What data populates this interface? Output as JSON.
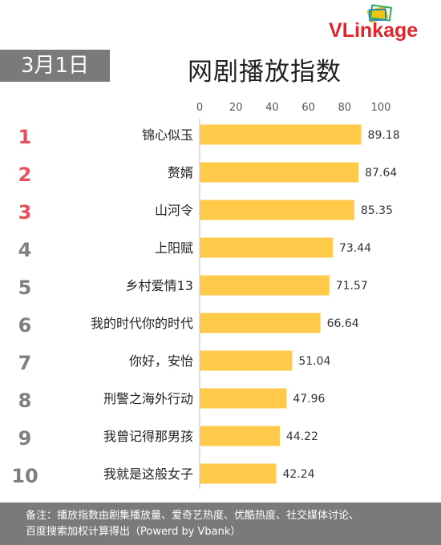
{
  "date_badge": "3月1日",
  "logo": {
    "v": "V",
    "rest": "Linkage"
  },
  "footer": {
    "line1": "备注：播放指数由剧集播放量、爱奇艺热度、优酷热度、社交媒体讨论、",
    "line2": "百度搜索加权计算得出（Powerd by Vbank）"
  },
  "colors": {
    "bar": "#ffc94a",
    "rank_top": "#e8505b",
    "rank_other": "#808080",
    "badge": "#7a7a7a"
  },
  "chart_data": {
    "type": "bar",
    "orientation": "horizontal",
    "title": "网剧播放指数",
    "xlim": [
      0,
      100
    ],
    "ticks": [
      0,
      20,
      40,
      60,
      80,
      100
    ],
    "ranks": [
      "1",
      "2",
      "3",
      "4",
      "5",
      "6",
      "7",
      "8",
      "9",
      "10"
    ],
    "categories": [
      "锦心似玉",
      "赘婿",
      "山河令",
      "上阳赋",
      "乡村爱情13",
      "我的时代你的时代",
      "你好，安怡",
      "刑警之海外行动",
      "我曾记得那男孩",
      "我就是这般女子"
    ],
    "values": [
      89.18,
      87.64,
      85.35,
      73.44,
      71.57,
      66.64,
      51.04,
      47.96,
      44.22,
      42.24
    ],
    "value_labels": [
      "89.18",
      "87.64",
      "85.35",
      "73.44",
      "71.57",
      "66.64",
      "51.04",
      "47.96",
      "44.22",
      "42.24"
    ]
  }
}
